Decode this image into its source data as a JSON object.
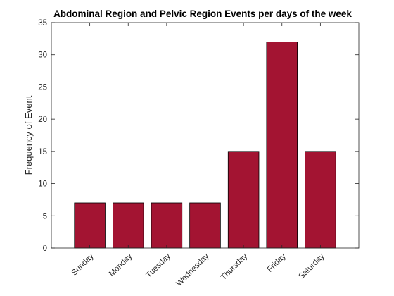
{
  "chart_data": {
    "type": "bar",
    "title": "Abdominal Region and Pelvic Region Events per days of the week",
    "xlabel": "",
    "ylabel": "Frequency of Event",
    "categories": [
      "Sunday",
      "Monday",
      "Tuesday",
      "Wednesday",
      "Thursday",
      "Friday",
      "Saturday"
    ],
    "values": [
      7,
      7,
      7,
      7,
      15,
      32,
      15
    ],
    "ylim": [
      0,
      35
    ],
    "yticks": [
      0,
      5,
      10,
      15,
      20,
      25,
      30,
      35
    ],
    "ytick_labels": [
      "0",
      "5",
      "10",
      "15",
      "20",
      "25",
      "30",
      "35"
    ],
    "bar_color": "#A31432",
    "edge_color": "#000000",
    "grid": false,
    "legend": "none"
  }
}
